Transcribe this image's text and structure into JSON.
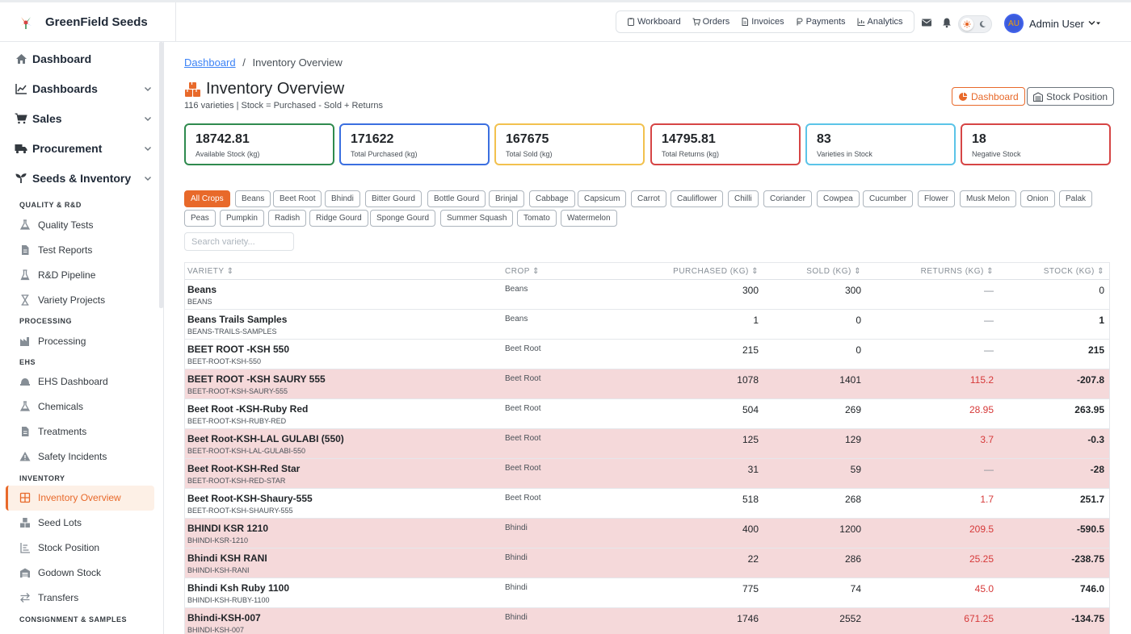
{
  "brand": {
    "name": "GreenField Seeds"
  },
  "topnav": [
    {
      "label": "Workboard",
      "icon": "clipboard-icon"
    },
    {
      "label": "Orders",
      "icon": "cart-icon"
    },
    {
      "label": "Invoices",
      "icon": "invoice-icon"
    },
    {
      "label": "Payments",
      "icon": "payments-icon"
    },
    {
      "label": "Analytics",
      "icon": "analytics-icon"
    }
  ],
  "user": {
    "name": "Admin User",
    "initials": "AU"
  },
  "sidebar": {
    "main": [
      {
        "label": "Dashboard",
        "icon": "home-icon"
      },
      {
        "label": "Dashboards",
        "icon": "chart-line-icon"
      },
      {
        "label": "Sales",
        "icon": "cart-icon"
      },
      {
        "label": "Procurement",
        "icon": "truck-icon"
      },
      {
        "label": "Seeds & Inventory",
        "icon": "seedling-icon"
      }
    ],
    "sections": [
      "QUALITY & R&D",
      "PROCESSING",
      "EHS",
      "INVENTORY",
      "CONSIGNMENT & SAMPLES"
    ],
    "items": [
      {
        "label": "Quality Tests",
        "icon": "flask-icon"
      },
      {
        "label": "Test Reports",
        "icon": "file-icon"
      },
      {
        "label": "R&D Pipeline",
        "icon": "beaker-icon"
      },
      {
        "label": "Variety Projects",
        "icon": "hourglass-icon"
      },
      {
        "label": "Processing",
        "icon": "factory-icon"
      },
      {
        "label": "EHS Dashboard",
        "icon": "hardhat-icon"
      },
      {
        "label": "Chemicals",
        "icon": "flask-icon"
      },
      {
        "label": "Treatments",
        "icon": "file-icon"
      },
      {
        "label": "Safety Incidents",
        "icon": "warning-icon"
      },
      {
        "label": "Inventory Overview",
        "icon": "grid-icon"
      },
      {
        "label": "Seed Lots",
        "icon": "boxes-icon"
      },
      {
        "label": "Stock Position",
        "icon": "list-icon"
      },
      {
        "label": "Godown Stock",
        "icon": "warehouse-icon"
      },
      {
        "label": "Transfers",
        "icon": "transfer-icon"
      }
    ]
  },
  "breadcrumb": {
    "link": "Dashboard",
    "sep": "/",
    "current": "Inventory Overview"
  },
  "page": {
    "title": "Inventory Overview",
    "subtitle": "116 varieties | Stock = Purchased - Sold + Returns",
    "btn_dashboard": "Dashboard",
    "btn_stock": "Stock Position"
  },
  "stats": [
    {
      "value": "18742.81",
      "label": "Available Stock (kg)",
      "color": "#2f8a4e"
    },
    {
      "value": "171622",
      "label": "Total Purchased (kg)",
      "color": "#3b6fe0"
    },
    {
      "value": "167675",
      "label": "Total Sold (kg)",
      "color": "#f2c14e"
    },
    {
      "value": "14795.81",
      "label": "Total Returns (kg)",
      "color": "#d64545"
    },
    {
      "value": "83",
      "label": "Varieties in Stock",
      "color": "#5bc4e8"
    },
    {
      "value": "18",
      "label": "Negative Stock",
      "color": "#d64545"
    }
  ],
  "chips": [
    "All Crops",
    "Beans",
    "Beet Root",
    "Bhindi",
    "Bitter Gourd",
    "Bottle Gourd",
    "Brinjal",
    "Cabbage",
    "Capsicum",
    "Carrot",
    "Cauliflower",
    "Chilli",
    "Coriander",
    "Cowpea",
    "Cucumber",
    "Flower",
    "Musk Melon",
    "Onion",
    "Palak",
    "Peas",
    "Pumpkin",
    "Radish",
    "Ridge Gourd",
    "Sponge Gourd",
    "Summer Squash",
    "Tomato",
    "Watermelon"
  ],
  "search": {
    "placeholder": "Search variety..."
  },
  "table": {
    "headers": [
      "VARIETY ⇕",
      "CROP ⇕",
      "PURCHASED (KG) ⇕",
      "SOLD (KG) ⇕",
      "RETURNS (KG) ⇕",
      "STOCK (KG) ⇕"
    ],
    "rows": [
      {
        "name": "Beans",
        "code": "BEANS",
        "crop": "Beans",
        "purchased": "300",
        "sold": "300",
        "returns": "—",
        "stock": "0",
        "negative": false
      },
      {
        "name": "Beans Trails Samples",
        "code": "BEANS-TRAILS-SAMPLES",
        "crop": "Beans",
        "purchased": "1",
        "sold": "0",
        "returns": "—",
        "stock": "1",
        "negative": false
      },
      {
        "name": "BEET ROOT -KSH 550",
        "code": "BEET-ROOT-KSH-550",
        "crop": "Beet Root",
        "purchased": "215",
        "sold": "0",
        "returns": "—",
        "stock": "215",
        "negative": false
      },
      {
        "name": "BEET ROOT -KSH SAURY 555",
        "code": "BEET-ROOT-KSH-SAURY-555",
        "crop": "Beet Root",
        "purchased": "1078",
        "sold": "1401",
        "returns": "115.2",
        "stock": "-207.8",
        "negative": true
      },
      {
        "name": "Beet Root -KSH-Ruby Red",
        "code": "BEET-ROOT-KSH-RUBY-RED",
        "crop": "Beet Root",
        "purchased": "504",
        "sold": "269",
        "returns": "28.95",
        "stock": "263.95",
        "negative": false
      },
      {
        "name": "Beet Root-KSH-LAL GULABI (550)",
        "code": "BEET-ROOT-KSH-LAL-GULABI-550",
        "crop": "Beet Root",
        "purchased": "125",
        "sold": "129",
        "returns": "3.7",
        "stock": "-0.3",
        "negative": true
      },
      {
        "name": "Beet Root-KSH-Red Star",
        "code": "BEET-ROOT-KSH-RED-STAR",
        "crop": "Beet Root",
        "purchased": "31",
        "sold": "59",
        "returns": "—",
        "stock": "-28",
        "negative": true
      },
      {
        "name": "Beet Root-KSH-Shaury-555",
        "code": "BEET-ROOT-KSH-SHAURY-555",
        "crop": "Beet Root",
        "purchased": "518",
        "sold": "268",
        "returns": "1.7",
        "stock": "251.7",
        "negative": false
      },
      {
        "name": "BHINDI KSR 1210",
        "code": "BHINDI-KSR-1210",
        "crop": "Bhindi",
        "purchased": "400",
        "sold": "1200",
        "returns": "209.5",
        "stock": "-590.5",
        "negative": true
      },
      {
        "name": "Bhindi KSH RANI",
        "code": "BHINDI-KSH-RANI",
        "crop": "Bhindi",
        "purchased": "22",
        "sold": "286",
        "returns": "25.25",
        "stock": "-238.75",
        "negative": true
      },
      {
        "name": "Bhindi Ksh Ruby 1100",
        "code": "BHINDI-KSH-RUBY-1100",
        "crop": "Bhindi",
        "purchased": "775",
        "sold": "74",
        "returns": "45.0",
        "stock": "746.0",
        "negative": false
      },
      {
        "name": "Bhindi-KSH-007",
        "code": "BHINDI-KSH-007",
        "crop": "Bhindi",
        "purchased": "1746",
        "sold": "2552",
        "returns": "671.25",
        "stock": "-134.75",
        "negative": true
      }
    ]
  }
}
